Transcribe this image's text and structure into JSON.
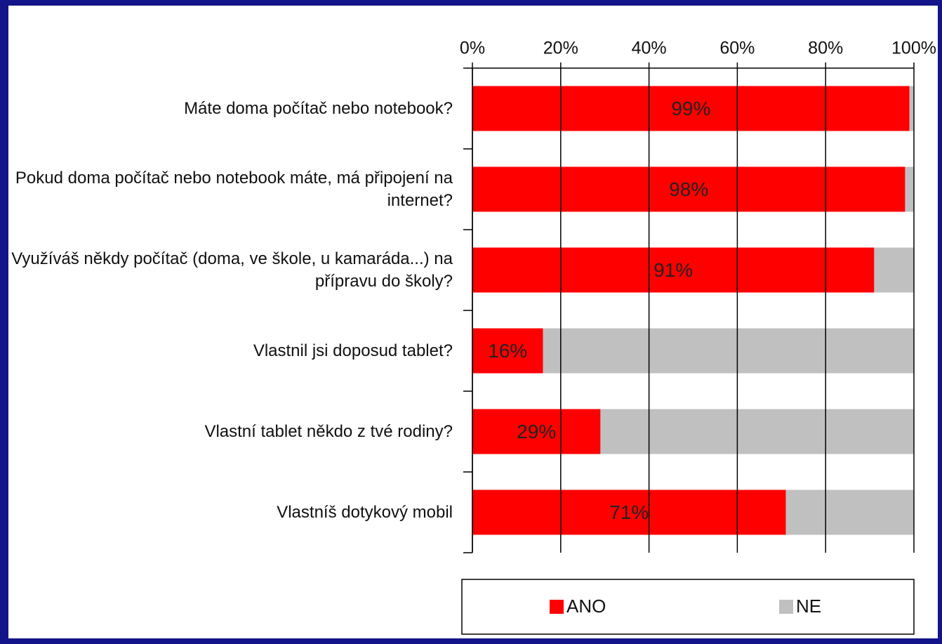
{
  "chart_data": {
    "type": "stacked-bar-horizontal",
    "categories": [
      "Máte doma počítač nebo notebook?",
      "Pokud doma počítač nebo notebook máte, má připojení na internet?",
      "Využíváš někdy počítač (doma, ve škole, u kamaráda...) na přípravu do školy?",
      "Vlastnil jsi doposud tablet?",
      "Vlastní tablet někdo z tvé rodiny?",
      "Vlastníš dotykový mobil"
    ],
    "series": [
      {
        "name": "ANO",
        "color": "#ff0000",
        "values": [
          99,
          98,
          91,
          16,
          29,
          71
        ],
        "value_labels": [
          "99%",
          "98%",
          "91%",
          "16%",
          "29%",
          "71%"
        ]
      },
      {
        "name": "NE",
        "color": "#c0c0c0",
        "values": [
          1,
          2,
          9,
          84,
          71,
          29
        ]
      }
    ],
    "xlim": [
      0,
      100
    ],
    "xticks": [
      {
        "value": 0,
        "label": "0%"
      },
      {
        "value": 20,
        "label": "20%"
      },
      {
        "value": 40,
        "label": "40%"
      },
      {
        "value": 60,
        "label": "60%"
      },
      {
        "value": 80,
        "label": "80%"
      },
      {
        "value": 100,
        "label": "100%"
      }
    ],
    "grid": true,
    "legend": "bottom"
  }
}
